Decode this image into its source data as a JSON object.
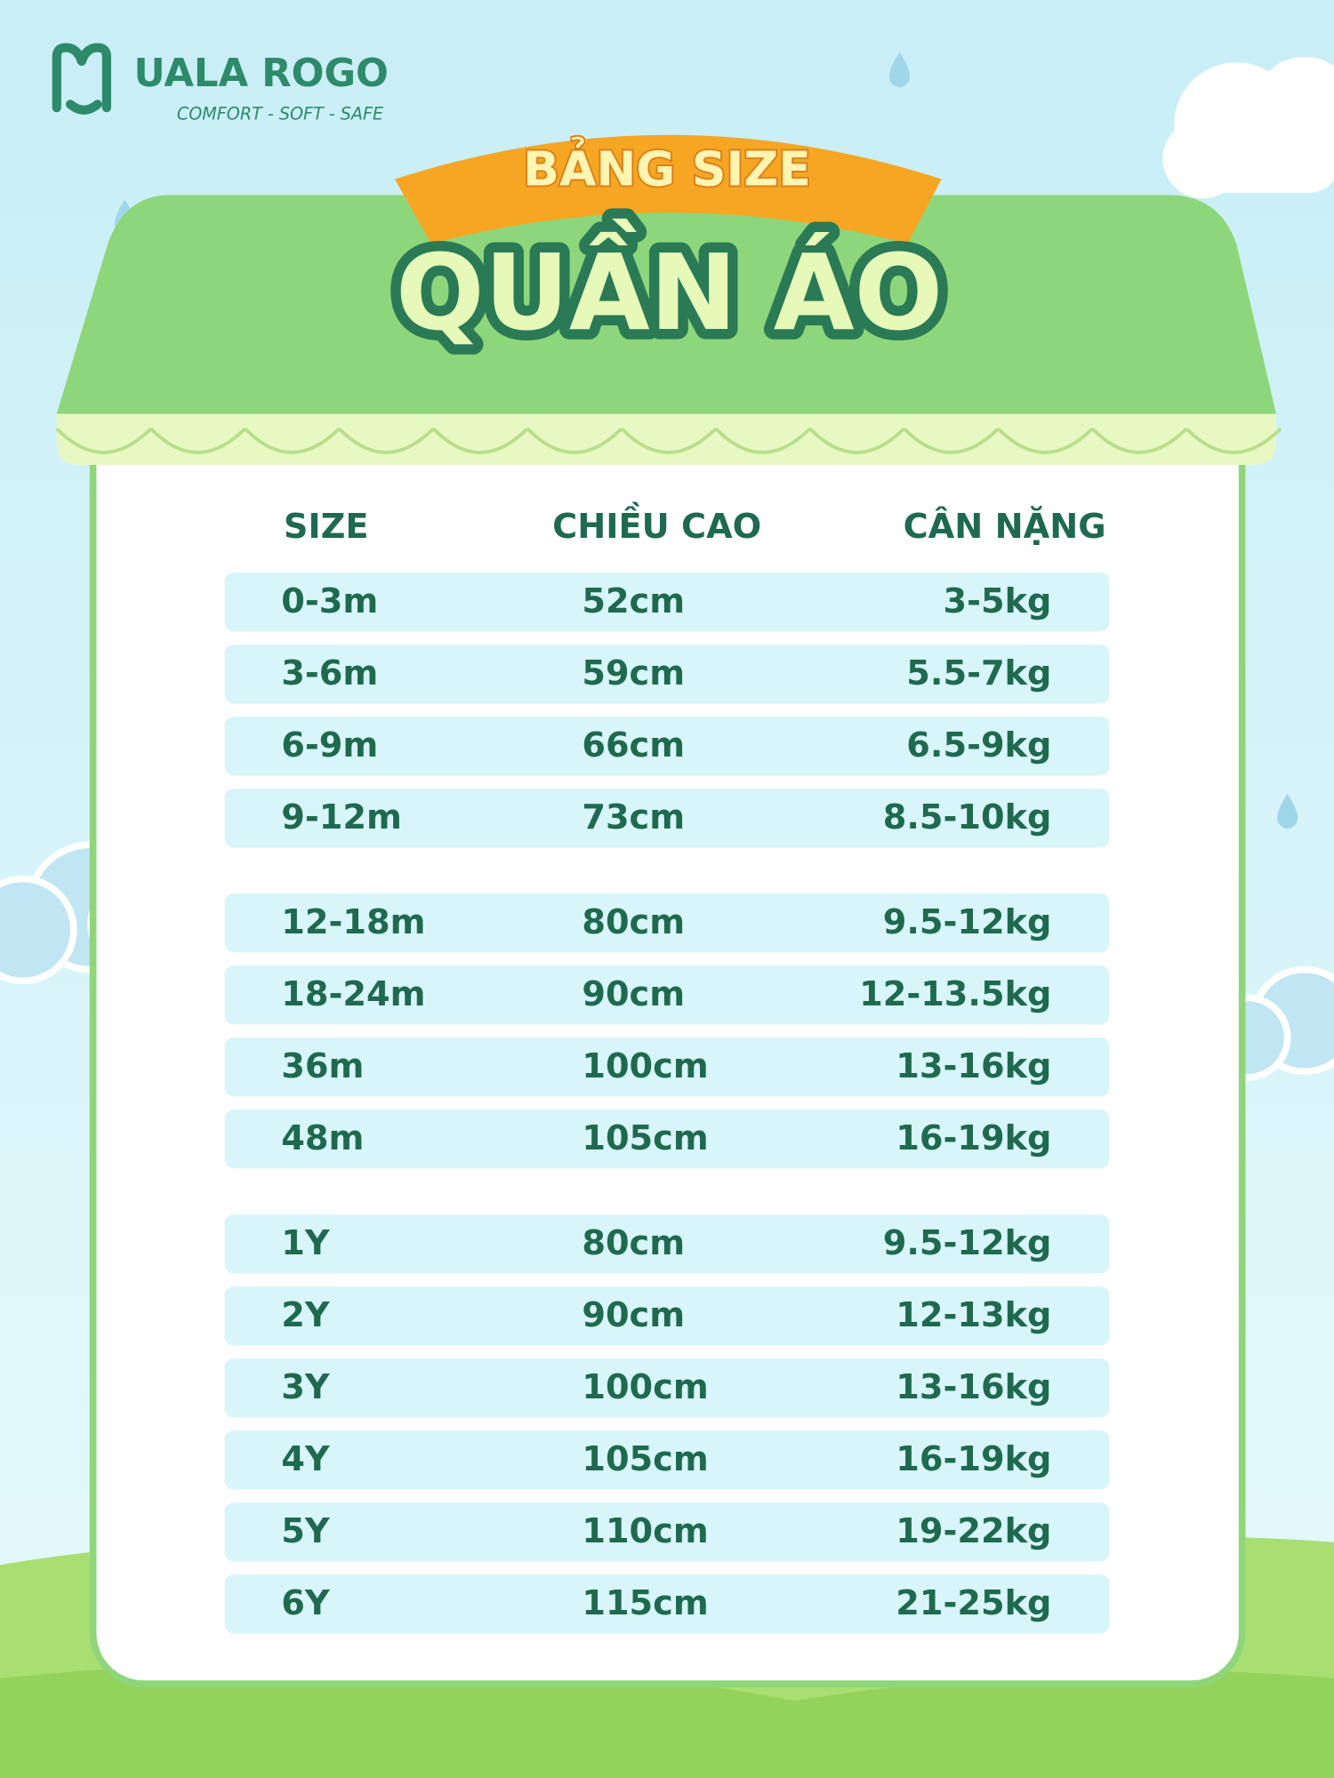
{
  "brand": {
    "name": "UALA ROGO",
    "tagline": "COMFORT - SOFT - SAFE"
  },
  "banner": {
    "subtitle": "BẢNG SIZE",
    "title": "QUẦN ÁO"
  },
  "table": {
    "header": [
      "SIZE",
      "CHIỀU CAO",
      "CÂN NẶNG"
    ],
    "groups": [
      {
        "rows": [
          [
            "0-3m",
            "52cm",
            "3-5kg"
          ],
          [
            "3-6m",
            "59cm",
            "5.5-7kg"
          ],
          [
            "6-9m",
            "66cm",
            "6.5-9kg"
          ],
          [
            "9-12m",
            "73cm",
            "8.5-10kg"
          ]
        ]
      },
      {
        "rows": [
          [
            "12-18m",
            "80cm",
            "9.5-12kg"
          ],
          [
            "18-24m",
            "90cm",
            "12-13.5kg"
          ],
          [
            "36m",
            "100cm",
            "13-16kg"
          ],
          [
            "48m",
            "105cm",
            "16-19kg"
          ]
        ]
      },
      {
        "rows": [
          [
            "1Y",
            "80cm",
            "9.5-12kg"
          ],
          [
            "2Y",
            "90cm",
            "12-13kg"
          ],
          [
            "3Y",
            "100cm",
            "13-16kg"
          ],
          [
            "4Y",
            "105cm",
            "16-19kg"
          ],
          [
            "5Y",
            "110cm",
            "19-22kg"
          ],
          [
            "6Y",
            "115cm",
            "21-25kg"
          ]
        ]
      }
    ]
  }
}
